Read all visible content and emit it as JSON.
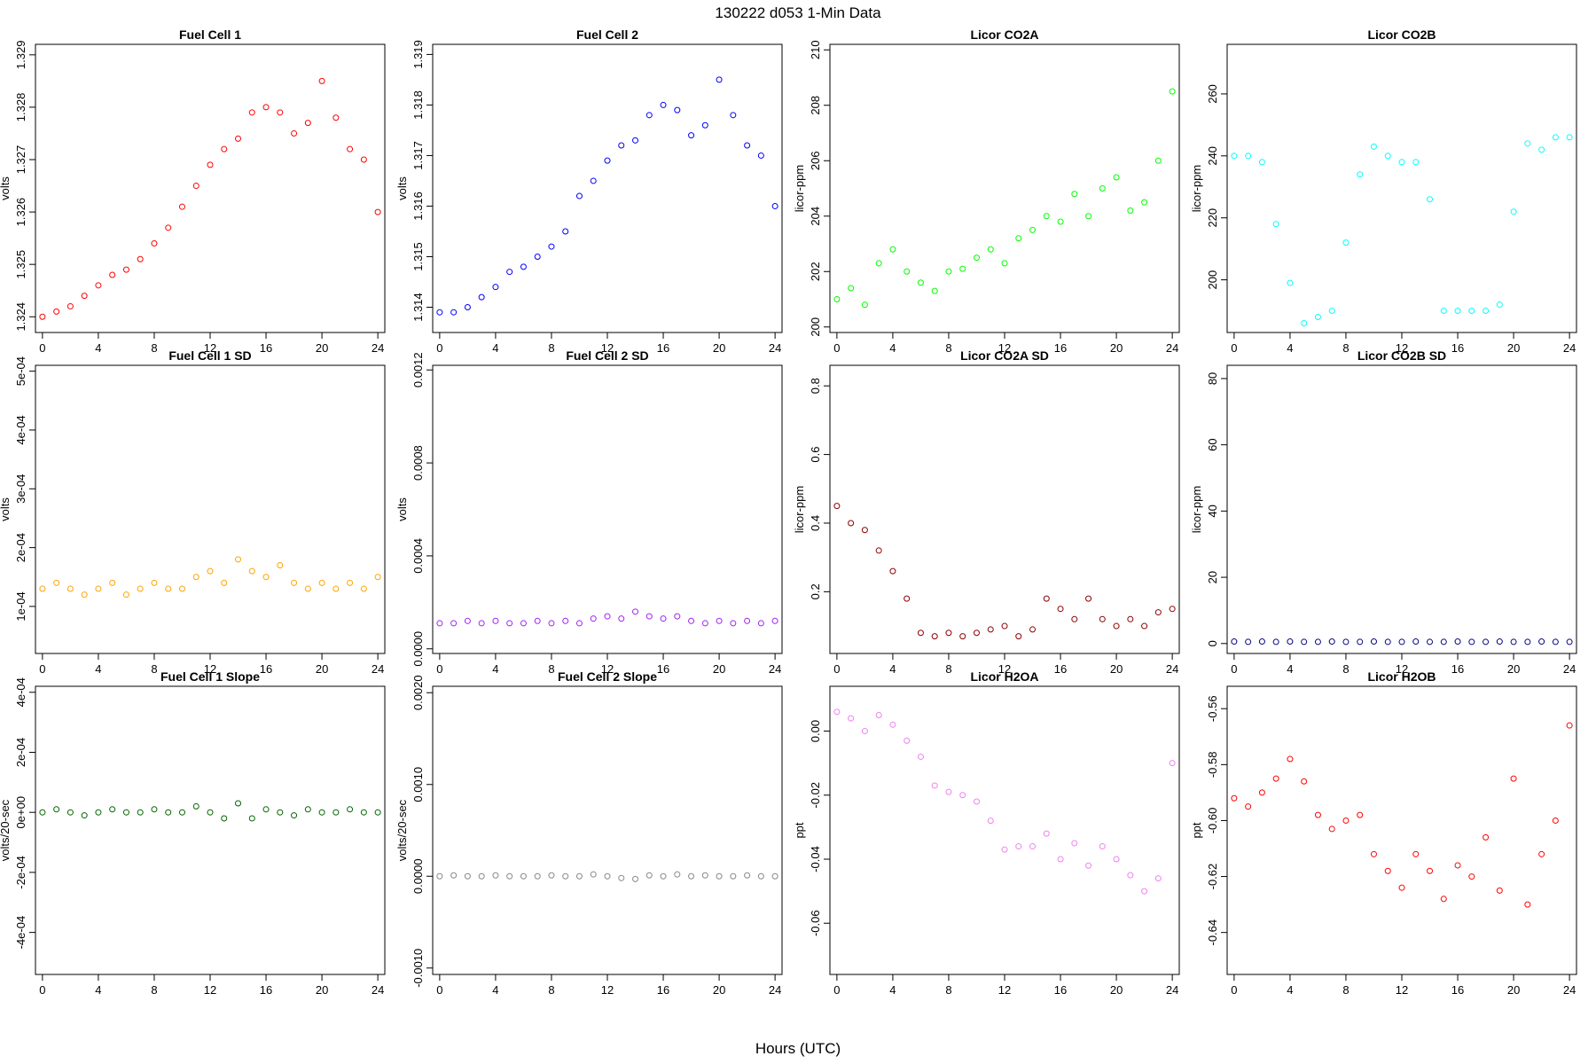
{
  "figure": {
    "title": "130222   d053   1-Min Data",
    "xlabel": "Hours (UTC)"
  },
  "chart_data": [
    {
      "type": "scatter",
      "title": "Fuel Cell 1",
      "ylabel": "volts",
      "color": "#ff0000",
      "xlim": [
        -0.5,
        24.5
      ],
      "ylim": [
        1.3237,
        1.3292
      ],
      "xticks": [
        0,
        4,
        8,
        12,
        16,
        20,
        24
      ],
      "yticks": [
        1.324,
        1.325,
        1.326,
        1.327,
        1.328,
        1.329
      ],
      "ytick_labels": [
        "1.324",
        "1.325",
        "1.326",
        "1.327",
        "1.328",
        "1.329"
      ],
      "ytick_rotate": true,
      "yrot": true,
      "x": [
        0,
        1,
        2,
        3,
        4,
        5,
        6,
        7,
        8,
        9,
        10,
        11,
        12,
        13,
        14,
        15,
        16,
        17,
        18,
        19,
        20,
        21,
        22,
        23,
        24
      ],
      "y": [
        1.324,
        1.3241,
        1.3242,
        1.3244,
        1.3246,
        1.3248,
        1.3249,
        1.3251,
        1.3254,
        1.3257,
        1.3261,
        1.3265,
        1.3269,
        1.3272,
        1.3274,
        1.3279,
        1.328,
        1.3279,
        1.3275,
        1.3277,
        1.3285,
        1.3278,
        1.3272,
        1.327,
        1.326
      ]
    },
    {
      "type": "scatter",
      "title": "Fuel Cell 2",
      "ylabel": "volts",
      "color": "#0000ff",
      "xlim": [
        -0.5,
        24.5
      ],
      "ylim": [
        1.3135,
        1.3192
      ],
      "xticks": [
        0,
        4,
        8,
        12,
        16,
        20,
        24
      ],
      "yticks": [
        1.314,
        1.315,
        1.316,
        1.317,
        1.318,
        1.319
      ],
      "ytick_labels": [
        "1.314",
        "1.315",
        "1.316",
        "1.317",
        "1.318",
        "1.319"
      ],
      "yrot": true,
      "x": [
        0,
        1,
        2,
        3,
        4,
        5,
        6,
        7,
        8,
        9,
        10,
        11,
        12,
        13,
        14,
        15,
        16,
        17,
        18,
        19,
        20,
        21,
        22,
        23,
        24
      ],
      "y": [
        1.3139,
        1.3139,
        1.314,
        1.3142,
        1.3144,
        1.3147,
        1.3148,
        1.315,
        1.3152,
        1.3155,
        1.3162,
        1.3165,
        1.3169,
        1.3172,
        1.3173,
        1.3178,
        1.318,
        1.3179,
        1.3174,
        1.3176,
        1.3185,
        1.3178,
        1.3172,
        1.317,
        1.316
      ]
    },
    {
      "type": "scatter",
      "title": "Licor CO2A",
      "ylabel": "licor-ppm",
      "color": "#00ff00",
      "xlim": [
        -0.5,
        24.5
      ],
      "ylim": [
        199.8,
        210.2
      ],
      "xticks": [
        0,
        4,
        8,
        12,
        16,
        20,
        24
      ],
      "yticks": [
        200,
        202,
        204,
        206,
        208,
        210
      ],
      "ytick_labels": [
        "200",
        "202",
        "204",
        "206",
        "208",
        "210"
      ],
      "yrot": true,
      "x": [
        0,
        1,
        2,
        3,
        4,
        5,
        6,
        7,
        8,
        9,
        10,
        11,
        12,
        13,
        14,
        15,
        16,
        17,
        18,
        19,
        20,
        21,
        22,
        23,
        24
      ],
      "y": [
        201.0,
        201.4,
        200.8,
        202.3,
        202.8,
        202.0,
        201.6,
        201.3,
        202.0,
        202.1,
        202.5,
        202.8,
        202.3,
        203.2,
        203.5,
        204.0,
        203.8,
        204.8,
        204.0,
        205.0,
        205.4,
        204.2,
        204.5,
        206.0,
        208.5
      ]
    },
    {
      "type": "scatter",
      "title": "Licor CO2B",
      "ylabel": "licor-ppm",
      "color": "#00ffff",
      "xlim": [
        -0.5,
        24.5
      ],
      "ylim": [
        183,
        276
      ],
      "xticks": [
        0,
        4,
        8,
        12,
        16,
        20,
        24
      ],
      "yticks": [
        200,
        220,
        240,
        260
      ],
      "ytick_labels": [
        "200",
        "220",
        "240",
        "260"
      ],
      "yrot": true,
      "x": [
        0,
        1,
        2,
        3,
        4,
        5,
        6,
        7,
        8,
        9,
        10,
        11,
        12,
        13,
        14,
        15,
        16,
        17,
        18,
        19,
        20,
        21,
        22,
        23,
        24
      ],
      "y": [
        240,
        240,
        238,
        218,
        199,
        186,
        188,
        190,
        212,
        234,
        243,
        240,
        238,
        238,
        226,
        190,
        190,
        190,
        190,
        192,
        222,
        244,
        242,
        246,
        246
      ]
    },
    {
      "type": "scatter",
      "title": "Fuel Cell 1 SD",
      "ylabel": "volts",
      "color": "#ffa500",
      "xlim": [
        -0.5,
        24.5
      ],
      "ylim": [
        2e-05,
        0.00051
      ],
      "xticks": [
        0,
        4,
        8,
        12,
        16,
        20,
        24
      ],
      "yticks": [
        0.0001,
        0.0002,
        0.0003,
        0.0004,
        0.0005
      ],
      "ytick_labels": [
        "1e-04",
        "2e-04",
        "3e-04",
        "4e-04",
        "5e-04"
      ],
      "yrot": true,
      "x": [
        0,
        1,
        2,
        3,
        4,
        5,
        6,
        7,
        8,
        9,
        10,
        11,
        12,
        13,
        14,
        15,
        16,
        17,
        18,
        19,
        20,
        21,
        22,
        23,
        24
      ],
      "y": [
        0.00013,
        0.00014,
        0.00013,
        0.00012,
        0.00013,
        0.00014,
        0.00012,
        0.00013,
        0.00014,
        0.00013,
        0.00013,
        0.00015,
        0.00016,
        0.00014,
        0.00018,
        0.00016,
        0.00015,
        0.00017,
        0.00014,
        0.00013,
        0.00014,
        0.00013,
        0.00014,
        0.00013,
        0.00015
      ]
    },
    {
      "type": "scatter",
      "title": "Fuel Cell 2 SD",
      "ylabel": "volts",
      "color": "#a020f0",
      "xlim": [
        -0.5,
        24.5
      ],
      "ylim": [
        -2e-05,
        0.00122
      ],
      "xticks": [
        0,
        4,
        8,
        12,
        16,
        20,
        24
      ],
      "yticks": [
        0.0,
        0.0004,
        0.0008,
        0.0012
      ],
      "ytick_labels": [
        "0.0000",
        "0.0004",
        "0.0008",
        "0.0012"
      ],
      "yrot": true,
      "x": [
        0,
        1,
        2,
        3,
        4,
        5,
        6,
        7,
        8,
        9,
        10,
        11,
        12,
        13,
        14,
        15,
        16,
        17,
        18,
        19,
        20,
        21,
        22,
        23,
        24
      ],
      "y": [
        0.00011,
        0.00011,
        0.00012,
        0.00011,
        0.00012,
        0.00011,
        0.00011,
        0.00012,
        0.00011,
        0.00012,
        0.00011,
        0.00013,
        0.00014,
        0.00013,
        0.00016,
        0.00014,
        0.00013,
        0.00014,
        0.00012,
        0.00011,
        0.00012,
        0.00011,
        0.00012,
        0.00011,
        0.00012
      ]
    },
    {
      "type": "scatter",
      "title": "Licor CO2A SD",
      "ylabel": "licor-ppm",
      "color": "#8b0000",
      "xlim": [
        -0.5,
        24.5
      ],
      "ylim": [
        0.02,
        0.86
      ],
      "xticks": [
        0,
        4,
        8,
        12,
        16,
        20,
        24
      ],
      "yticks": [
        0.2,
        0.4,
        0.6,
        0.8
      ],
      "ytick_labels": [
        "0.2",
        "0.4",
        "0.6",
        "0.8"
      ],
      "yrot": true,
      "x": [
        0,
        1,
        2,
        3,
        4,
        5,
        6,
        7,
        8,
        9,
        10,
        11,
        12,
        13,
        14,
        15,
        16,
        17,
        18,
        19,
        20,
        21,
        22,
        23,
        24
      ],
      "y": [
        0.45,
        0.4,
        0.38,
        0.32,
        0.26,
        0.18,
        0.08,
        0.07,
        0.08,
        0.07,
        0.08,
        0.09,
        0.1,
        0.07,
        0.09,
        0.18,
        0.15,
        0.12,
        0.18,
        0.12,
        0.1,
        0.12,
        0.1,
        0.14,
        0.15
      ]
    },
    {
      "type": "scatter",
      "title": "Licor CO2B SD",
      "ylabel": "licor-ppm",
      "color": "#000080",
      "xlim": [
        -0.5,
        24.5
      ],
      "ylim": [
        -3,
        84
      ],
      "xticks": [
        0,
        4,
        8,
        12,
        16,
        20,
        24
      ],
      "yticks": [
        0,
        20,
        40,
        60,
        80
      ],
      "ytick_labels": [
        "0",
        "20",
        "40",
        "60",
        "80"
      ],
      "yrot": true,
      "x": [
        0,
        1,
        2,
        3,
        4,
        5,
        6,
        7,
        8,
        9,
        10,
        11,
        12,
        13,
        14,
        15,
        16,
        17,
        18,
        19,
        20,
        21,
        22,
        23,
        24
      ],
      "y": [
        0.6,
        0.5,
        0.6,
        0.5,
        0.6,
        0.5,
        0.5,
        0.6,
        0.5,
        0.5,
        0.6,
        0.5,
        0.5,
        0.6,
        0.5,
        0.5,
        0.6,
        0.5,
        0.5,
        0.6,
        0.5,
        0.5,
        0.6,
        0.5,
        0.5
      ]
    },
    {
      "type": "scatter",
      "title": "Fuel Cell 1 Slope",
      "ylabel": "volts/20-sec",
      "color": "#006400",
      "xlim": [
        -0.5,
        24.5
      ],
      "ylim": [
        -0.00054,
        0.00042
      ],
      "xticks": [
        0,
        4,
        8,
        12,
        16,
        20,
        24
      ],
      "yticks": [
        -0.0004,
        -0.0002,
        0.0,
        0.0002,
        0.0004
      ],
      "ytick_labels": [
        "-4e-04",
        "-2e-04",
        "0e+00",
        "2e-04",
        "4e-04"
      ],
      "yrot": true,
      "x": [
        0,
        1,
        2,
        3,
        4,
        5,
        6,
        7,
        8,
        9,
        10,
        11,
        12,
        13,
        14,
        15,
        16,
        17,
        18,
        19,
        20,
        21,
        22,
        23,
        24
      ],
      "y": [
        0.0,
        1e-05,
        0.0,
        -1e-05,
        0.0,
        1e-05,
        0.0,
        0.0,
        1e-05,
        0.0,
        0.0,
        2e-05,
        0.0,
        -2e-05,
        3e-05,
        -2e-05,
        1e-05,
        0.0,
        -1e-05,
        1e-05,
        0.0,
        0.0,
        1e-05,
        0.0,
        0.0
      ]
    },
    {
      "type": "scatter",
      "title": "Fuel Cell 2 Slope",
      "ylabel": "volts/20-sec",
      "color": "#888888",
      "xlim": [
        -0.5,
        24.5
      ],
      "ylim": [
        -0.00107,
        0.00207
      ],
      "xticks": [
        0,
        4,
        8,
        12,
        16,
        20,
        24
      ],
      "yticks": [
        -0.001,
        0.0,
        0.001,
        0.002
      ],
      "ytick_labels": [
        "-0.0010",
        "0.0000",
        "0.0010",
        "0.0020"
      ],
      "yrot": true,
      "x": [
        0,
        1,
        2,
        3,
        4,
        5,
        6,
        7,
        8,
        9,
        10,
        11,
        12,
        13,
        14,
        15,
        16,
        17,
        18,
        19,
        20,
        21,
        22,
        23,
        24
      ],
      "y": [
        0.0,
        1e-05,
        0.0,
        0.0,
        1e-05,
        0.0,
        0.0,
        0.0,
        1e-05,
        0.0,
        0.0,
        2e-05,
        0.0,
        -2e-05,
        -3e-05,
        1e-05,
        0.0,
        2e-05,
        0.0,
        1e-05,
        0.0,
        0.0,
        1e-05,
        0.0,
        0.0
      ]
    },
    {
      "type": "scatter",
      "title": "Licor H2OA",
      "ylabel": "ppt",
      "color": "#ee82ee",
      "xlim": [
        -0.5,
        24.5
      ],
      "ylim": [
        -0.076,
        0.014
      ],
      "xticks": [
        0,
        4,
        8,
        12,
        16,
        20,
        24
      ],
      "yticks": [
        -0.06,
        -0.04,
        -0.02,
        0.0
      ],
      "ytick_labels": [
        "-0.06",
        "-0.04",
        "-0.02",
        "0.00"
      ],
      "yrot": true,
      "x": [
        0,
        1,
        2,
        3,
        4,
        5,
        6,
        7,
        8,
        9,
        10,
        11,
        12,
        13,
        14,
        15,
        16,
        17,
        18,
        19,
        20,
        21,
        22,
        23,
        24
      ],
      "y": [
        0.006,
        0.004,
        0.0,
        0.005,
        0.002,
        -0.003,
        -0.008,
        -0.017,
        -0.019,
        -0.02,
        -0.022,
        -0.028,
        -0.037,
        -0.036,
        -0.036,
        -0.032,
        -0.04,
        -0.035,
        -0.042,
        -0.036,
        -0.04,
        -0.045,
        -0.05,
        -0.046,
        -0.01
      ]
    },
    {
      "type": "scatter",
      "title": "Licor H2OB",
      "ylabel": "ppt",
      "color": "#ff0000",
      "xlim": [
        -0.5,
        24.5
      ],
      "ylim": [
        -0.655,
        -0.552
      ],
      "xticks": [
        0,
        4,
        8,
        12,
        16,
        20,
        24
      ],
      "yticks": [
        -0.64,
        -0.62,
        -0.6,
        -0.58,
        -0.56
      ],
      "ytick_labels": [
        "-0.64",
        "-0.62",
        "-0.60",
        "-0.58",
        "-0.56"
      ],
      "yrot": true,
      "x": [
        0,
        1,
        2,
        3,
        4,
        5,
        6,
        7,
        8,
        9,
        10,
        11,
        12,
        13,
        14,
        15,
        16,
        17,
        18,
        19,
        20,
        21,
        22,
        23,
        24
      ],
      "y": [
        -0.592,
        -0.595,
        -0.59,
        -0.585,
        -0.578,
        -0.586,
        -0.598,
        -0.603,
        -0.6,
        -0.598,
        -0.612,
        -0.618,
        -0.624,
        -0.612,
        -0.618,
        -0.628,
        -0.616,
        -0.62,
        -0.606,
        -0.625,
        -0.585,
        -0.63,
        -0.612,
        -0.6,
        -0.566
      ]
    }
  ]
}
